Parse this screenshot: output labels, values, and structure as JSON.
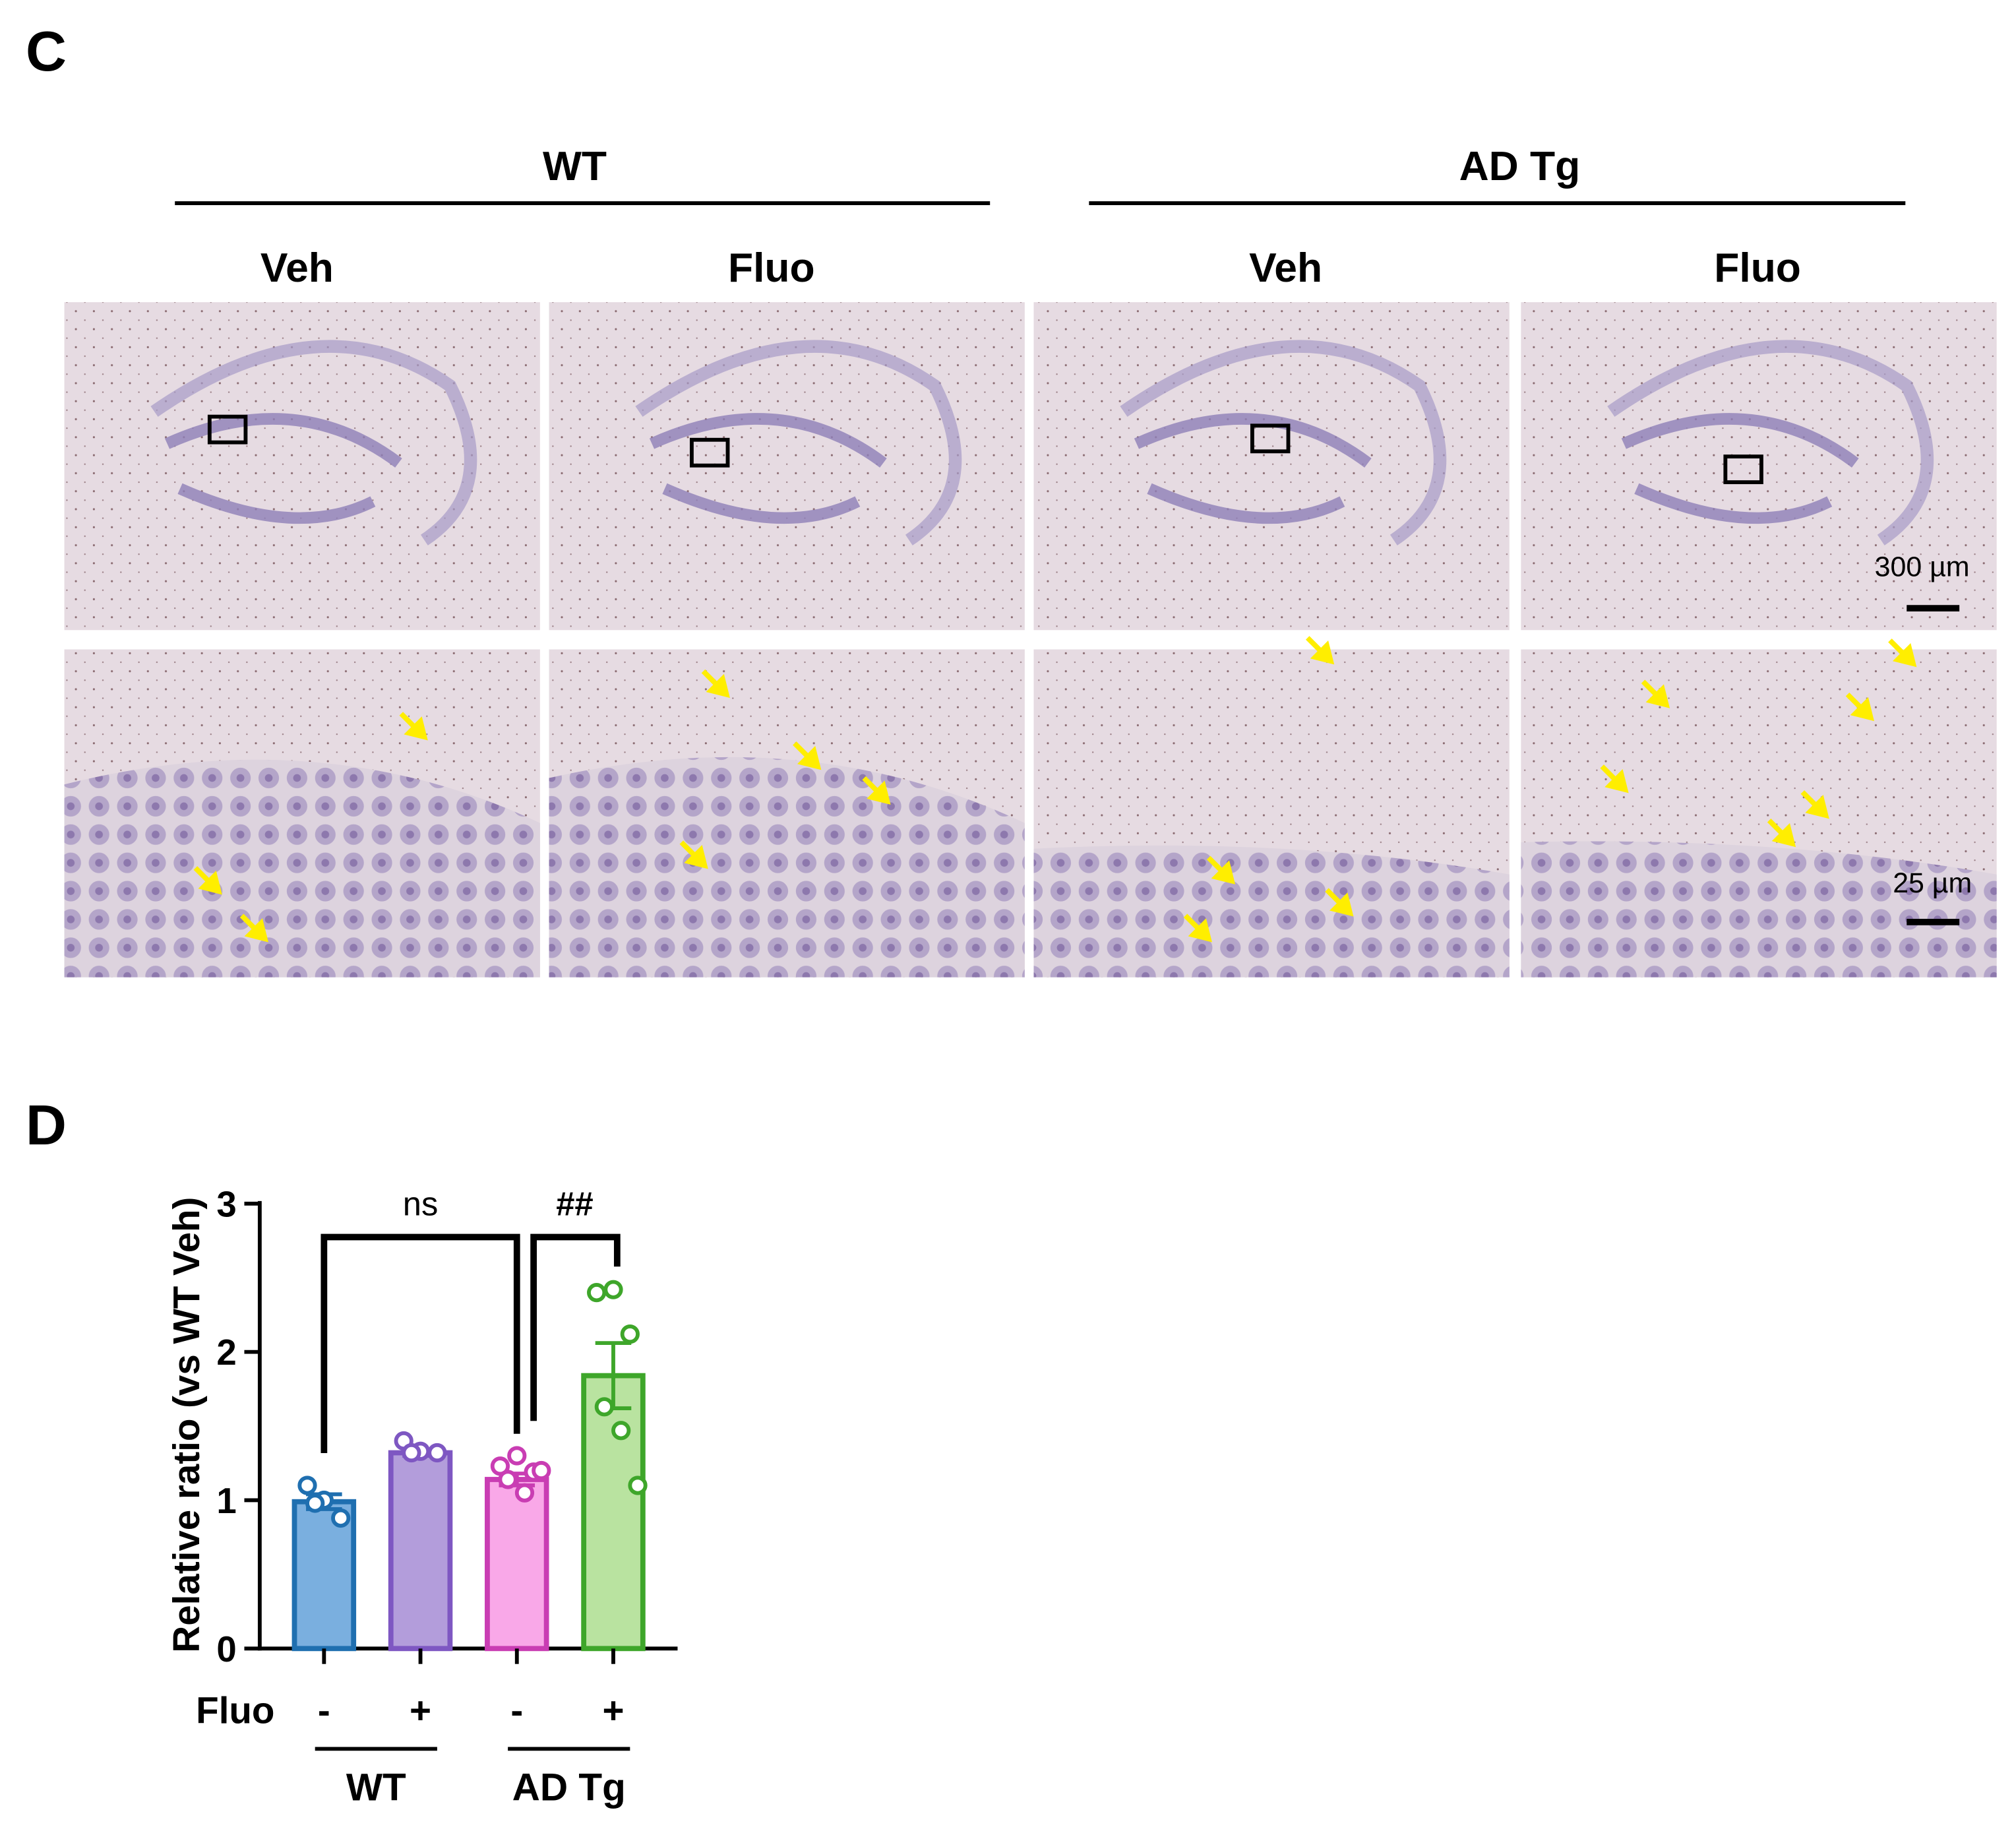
{
  "panel_c": {
    "label": "C",
    "groups": [
      {
        "name": "WT",
        "conditions": [
          "Veh",
          "Fluo"
        ]
      },
      {
        "name": "AD Tg",
        "conditions": [
          "Veh",
          "Fluo"
        ]
      }
    ],
    "scale_bars": [
      "300 µm",
      "25 µm"
    ]
  },
  "chart_data": {
    "type": "bar",
    "label": "D",
    "y_label": "Relative ratio (vs WT Veh)",
    "row_label": "Fluo",
    "categories": [
      "-",
      "+",
      "-",
      "+"
    ],
    "groups": [
      "WT",
      "AD Tg"
    ],
    "values": [
      0.99,
      1.32,
      1.14,
      1.84
    ],
    "errors": [
      0.05,
      0.02,
      0.04,
      0.22
    ],
    "colors": [
      "#7aafdf",
      "#b39ddb",
      "#f9a8e8",
      "#b9e3a0"
    ],
    "edge_colors": [
      "#1f6fb0",
      "#7e57c2",
      "#c93db3",
      "#3ea62a"
    ],
    "points": [
      [
        1.1,
        1.0,
        0.88,
        0.98
      ],
      [
        1.4,
        1.33,
        1.32,
        1.32
      ],
      [
        1.23,
        1.3,
        1.19,
        1.14,
        1.05,
        1.2
      ],
      [
        2.4,
        2.42,
        2.12,
        1.63,
        1.47,
        1.1
      ]
    ],
    "ylim": [
      0,
      3
    ],
    "yticks": [
      0,
      1,
      2,
      3
    ],
    "annotations": [
      "ns",
      "##"
    ]
  }
}
